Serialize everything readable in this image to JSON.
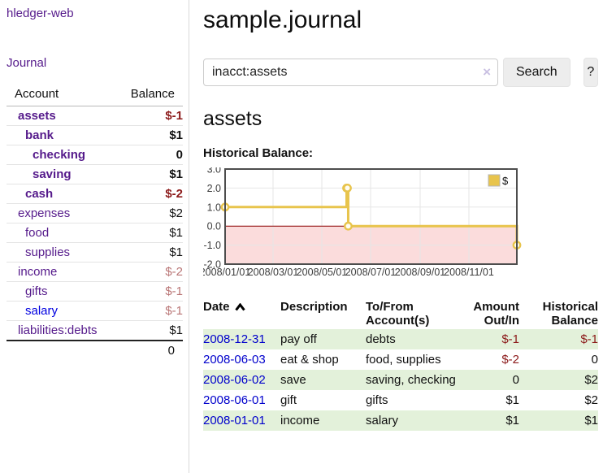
{
  "app": {
    "brand": "hledger-web",
    "nav": {
      "journal": "Journal"
    }
  },
  "sidebar": {
    "header": {
      "account": "Account",
      "balance": "Balance"
    },
    "accounts": [
      {
        "name": "assets",
        "depth": 1,
        "balance": "$-1",
        "bold": true
      },
      {
        "name": "bank",
        "depth": 2,
        "balance": "$1",
        "bold": true
      },
      {
        "name": "checking",
        "depth": 3,
        "balance": "0",
        "bold": true
      },
      {
        "name": "saving",
        "depth": 3,
        "balance": "$1",
        "bold": true
      },
      {
        "name": "cash",
        "depth": 2,
        "balance": "$-2",
        "bold": true
      },
      {
        "name": "expenses",
        "depth": 1,
        "balance": "$2",
        "bold": false
      },
      {
        "name": "food",
        "depth": 2,
        "balance": "$1",
        "bold": false
      },
      {
        "name": "supplies",
        "depth": 2,
        "balance": "$1",
        "bold": false
      },
      {
        "name": "income",
        "depth": 1,
        "balance": "$-2",
        "bold": false
      },
      {
        "name": "gifts",
        "depth": 2,
        "balance": "$-1",
        "bold": false
      },
      {
        "name": "salary",
        "depth": 2,
        "balance": "$-1",
        "bold": false,
        "unvisited": true
      },
      {
        "name": "liabilities:debts",
        "depth": 1,
        "balance": "$1",
        "bold": false
      }
    ],
    "total": "0"
  },
  "header": {
    "title": "sample.journal"
  },
  "search": {
    "value": "inacct:assets",
    "clear_icon": "×",
    "button_label": "Search",
    "help_label": "?"
  },
  "account_page": {
    "title": "assets",
    "chart_label": "Historical Balance:"
  },
  "chart_data": {
    "type": "line",
    "title": "Historical Balance:",
    "step": true,
    "x_range": [
      "2008/01/01",
      "2008/12/31"
    ],
    "ylim": [
      -2,
      3
    ],
    "y_ticks": [
      "3.0",
      "2.0",
      "1.0",
      "0.0",
      "-1.0",
      "-2.0"
    ],
    "x_ticks": [
      "2008/01/01",
      "2008/03/01",
      "2008/05/01",
      "2008/07/01",
      "2008/09/01",
      "2008/11/01"
    ],
    "series": [
      {
        "name": "$",
        "points": [
          [
            "2008/01/01",
            1
          ],
          [
            "2008/06/01",
            2
          ],
          [
            "2008/06/02",
            2
          ],
          [
            "2008/06/03",
            0
          ],
          [
            "2008/12/31",
            -1
          ]
        ]
      }
    ],
    "legend": {
      "label": "$",
      "position": "top-right"
    },
    "grid": true,
    "colors": {
      "line": "#e8c44c",
      "marker_fill": "#fffdf2",
      "negative_region": "#fbdcdc",
      "zero_line": "#8b0000",
      "border": "#4d4d4d",
      "gridline": "#e6e6e6",
      "tick_text": "#3d3d3d"
    }
  },
  "register": {
    "headers": {
      "date": "Date",
      "description": "Description",
      "accounts": "To/From\nAccount(s)",
      "amount": "Amount\nOut/In",
      "balance": "Historical\nBalance"
    },
    "sort": {
      "column": "date",
      "direction": "ascending"
    },
    "rows": [
      {
        "date": "2008-12-31",
        "description": "pay off",
        "accounts": "debts",
        "amount": "$-1",
        "balance": "$-1"
      },
      {
        "date": "2008-06-03",
        "description": "eat & shop",
        "accounts": "food, supplies",
        "amount": "$-2",
        "balance": "0"
      },
      {
        "date": "2008-06-02",
        "description": "save",
        "accounts": "saving, checking",
        "amount": "0",
        "balance": "$2"
      },
      {
        "date": "2008-06-01",
        "description": "gift",
        "accounts": "gifts",
        "amount": "$1",
        "balance": "$2"
      },
      {
        "date": "2008-01-01",
        "description": "income",
        "accounts": "salary",
        "amount": "$1",
        "balance": "$1"
      }
    ]
  },
  "colors": {
    "link_visited": "#551a8b",
    "link_unvisited": "#0000e0",
    "date_link": "#0000cc",
    "negative": "#8c1a1a",
    "negative_muted": "#b97575",
    "row_stripe": "#e3f1da"
  }
}
